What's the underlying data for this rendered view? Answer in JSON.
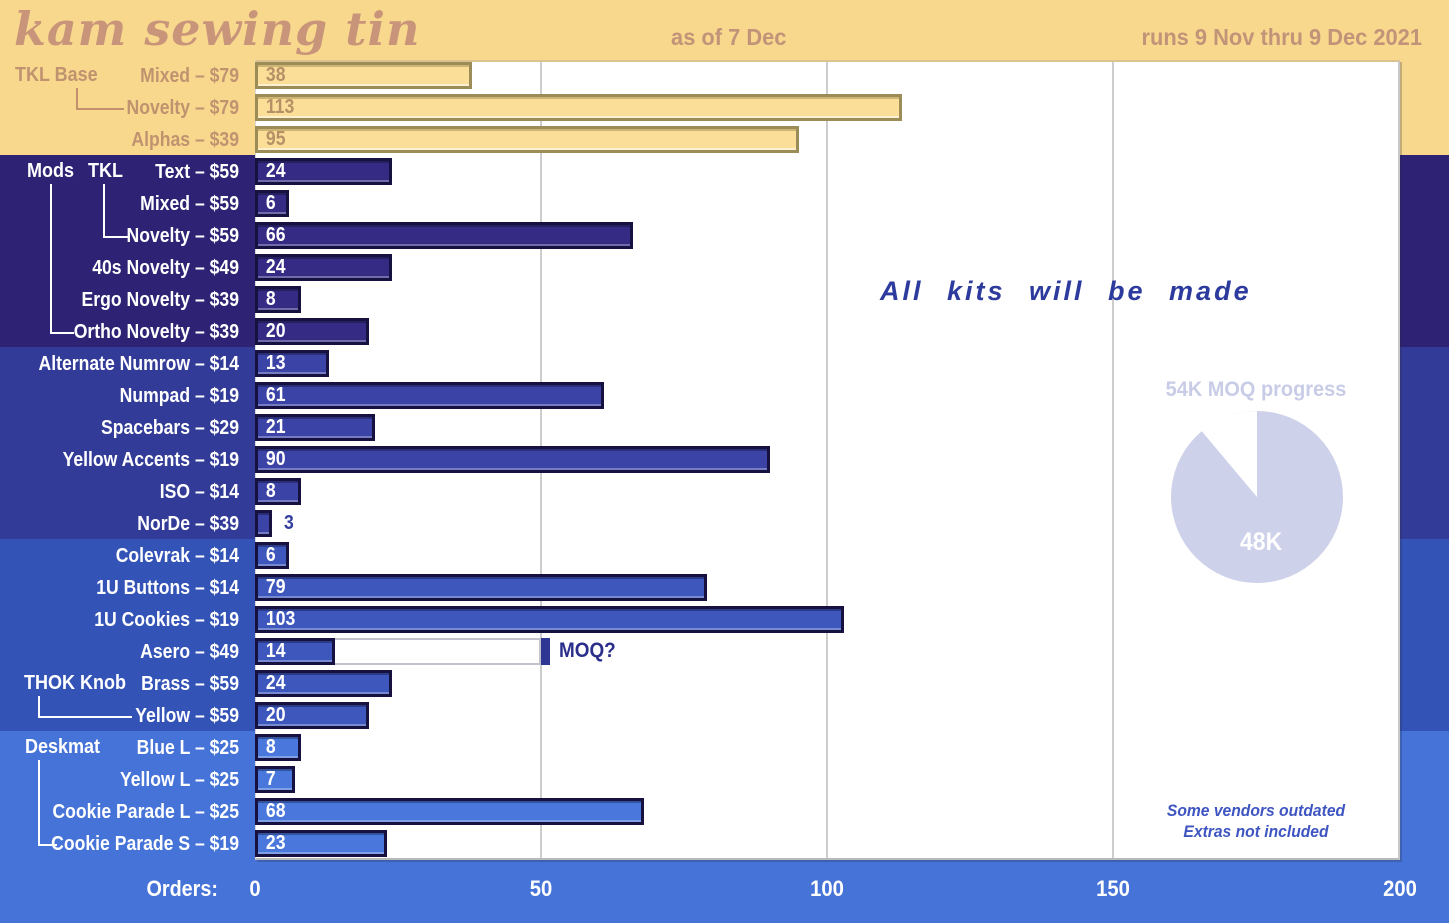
{
  "header": {
    "title": "kam sewing tin",
    "as_of": "as of 7 Dec",
    "date_range": "runs 9 Nov thru 9 Dec 2021"
  },
  "axis": {
    "label": "Orders:",
    "ticks": [
      0,
      50,
      100,
      150,
      200
    ],
    "max": 200
  },
  "annotations": {
    "center_note": "All kits will be made",
    "footnote_line1": "Some vendors outdated",
    "footnote_line2": "Extras not included"
  },
  "pie": {
    "title": "54K MOQ progress",
    "value_label": "48K",
    "current": 48,
    "goal": 54,
    "fill_color": "#cdd1ea"
  },
  "groups": [
    {
      "id": "tkl-base",
      "label": "TKL Base"
    },
    {
      "id": "mods",
      "label": "Mods"
    },
    {
      "id": "tkl",
      "label": "TKL"
    },
    {
      "id": "thok",
      "label": "THOK Knob"
    },
    {
      "id": "deskmat",
      "label": "Deskmat"
    }
  ],
  "colors": {
    "band_yellow": "#f8d88c",
    "band_dark_navy": "#2d2274",
    "band_indigo": "#333b98",
    "band_blue": "#3453b7",
    "band_bright_blue": "#4673d8",
    "yellow_bar_fill": "#fbde97",
    "yellow_bar_border": "#9c8c57",
    "blue_bar_border": "#17113f",
    "tan_text": "#bf9370",
    "navy_text": "#2e3693",
    "gridline": "#cdcdcd",
    "pie_lavender": "#cdd1ea"
  },
  "chart_data": {
    "type": "bar",
    "orientation": "horizontal",
    "title": "kam sewing tin",
    "xlabel": "Orders",
    "xlim": [
      0,
      200
    ],
    "xticks": [
      0,
      50,
      100,
      150,
      200
    ],
    "grid": true,
    "sections": [
      {
        "group": "TKL Base",
        "band_color": "#f8d88c",
        "bar_color": "#fbde97",
        "rows": [
          {
            "label": "Mixed – $79",
            "value": 38
          },
          {
            "label": "Novelty – $79",
            "value": 113
          },
          {
            "label": "Alphas – $39",
            "value": 95
          }
        ]
      },
      {
        "group": "Mods TKL",
        "band_color": "#2d2274",
        "bar_color": "#352b84",
        "rows": [
          {
            "label": "Text – $59",
            "value": 24
          },
          {
            "label": "Mixed – $59",
            "value": 6
          },
          {
            "label": "Novelty – $59",
            "value": 66
          },
          {
            "label": "40s Novelty – $49",
            "value": 24
          },
          {
            "label": "Ergo Novelty – $39",
            "value": 8
          },
          {
            "label": "Ortho Novelty – $39",
            "value": 20
          }
        ]
      },
      {
        "group": "",
        "band_color": "#333b98",
        "bar_color": "#3b44a6",
        "rows": [
          {
            "label": "Alternate Numrow – $14",
            "value": 13
          },
          {
            "label": "Numpad – $19",
            "value": 61
          },
          {
            "label": "Spacebars – $29",
            "value": 21
          },
          {
            "label": "Yellow Accents – $19",
            "value": 90
          },
          {
            "label": "ISO – $14",
            "value": 8
          },
          {
            "label": "NorDe – $39",
            "value": 3,
            "value_outside": true
          }
        ]
      },
      {
        "group": "THOK Knob",
        "band_color": "#3453b7",
        "bar_color": "#3d57bd",
        "rows": [
          {
            "label": "Colevrak – $14",
            "value": 6
          },
          {
            "label": "1U Buttons – $14",
            "value": 79
          },
          {
            "label": "1U Cookies – $19",
            "value": 103
          },
          {
            "label": "Asero – $49",
            "value": 14,
            "moq": true
          },
          {
            "label": "Brass – $59",
            "value": 24
          },
          {
            "label": "Yellow – $59",
            "value": 20
          }
        ]
      },
      {
        "group": "Deskmat",
        "band_color": "#4673d8",
        "bar_color": "#4a77dc",
        "rows": [
          {
            "label": "Blue L – $25",
            "value": 8
          },
          {
            "label": "Yellow L – $25",
            "value": 7
          },
          {
            "label": "Cookie Parade L – $25",
            "value": 68
          },
          {
            "label": "Cookie Parade S – $19",
            "value": 23
          }
        ]
      }
    ],
    "moq_marker": {
      "row_label": "Asero – $49",
      "target": 50,
      "label": "MOQ?"
    }
  }
}
